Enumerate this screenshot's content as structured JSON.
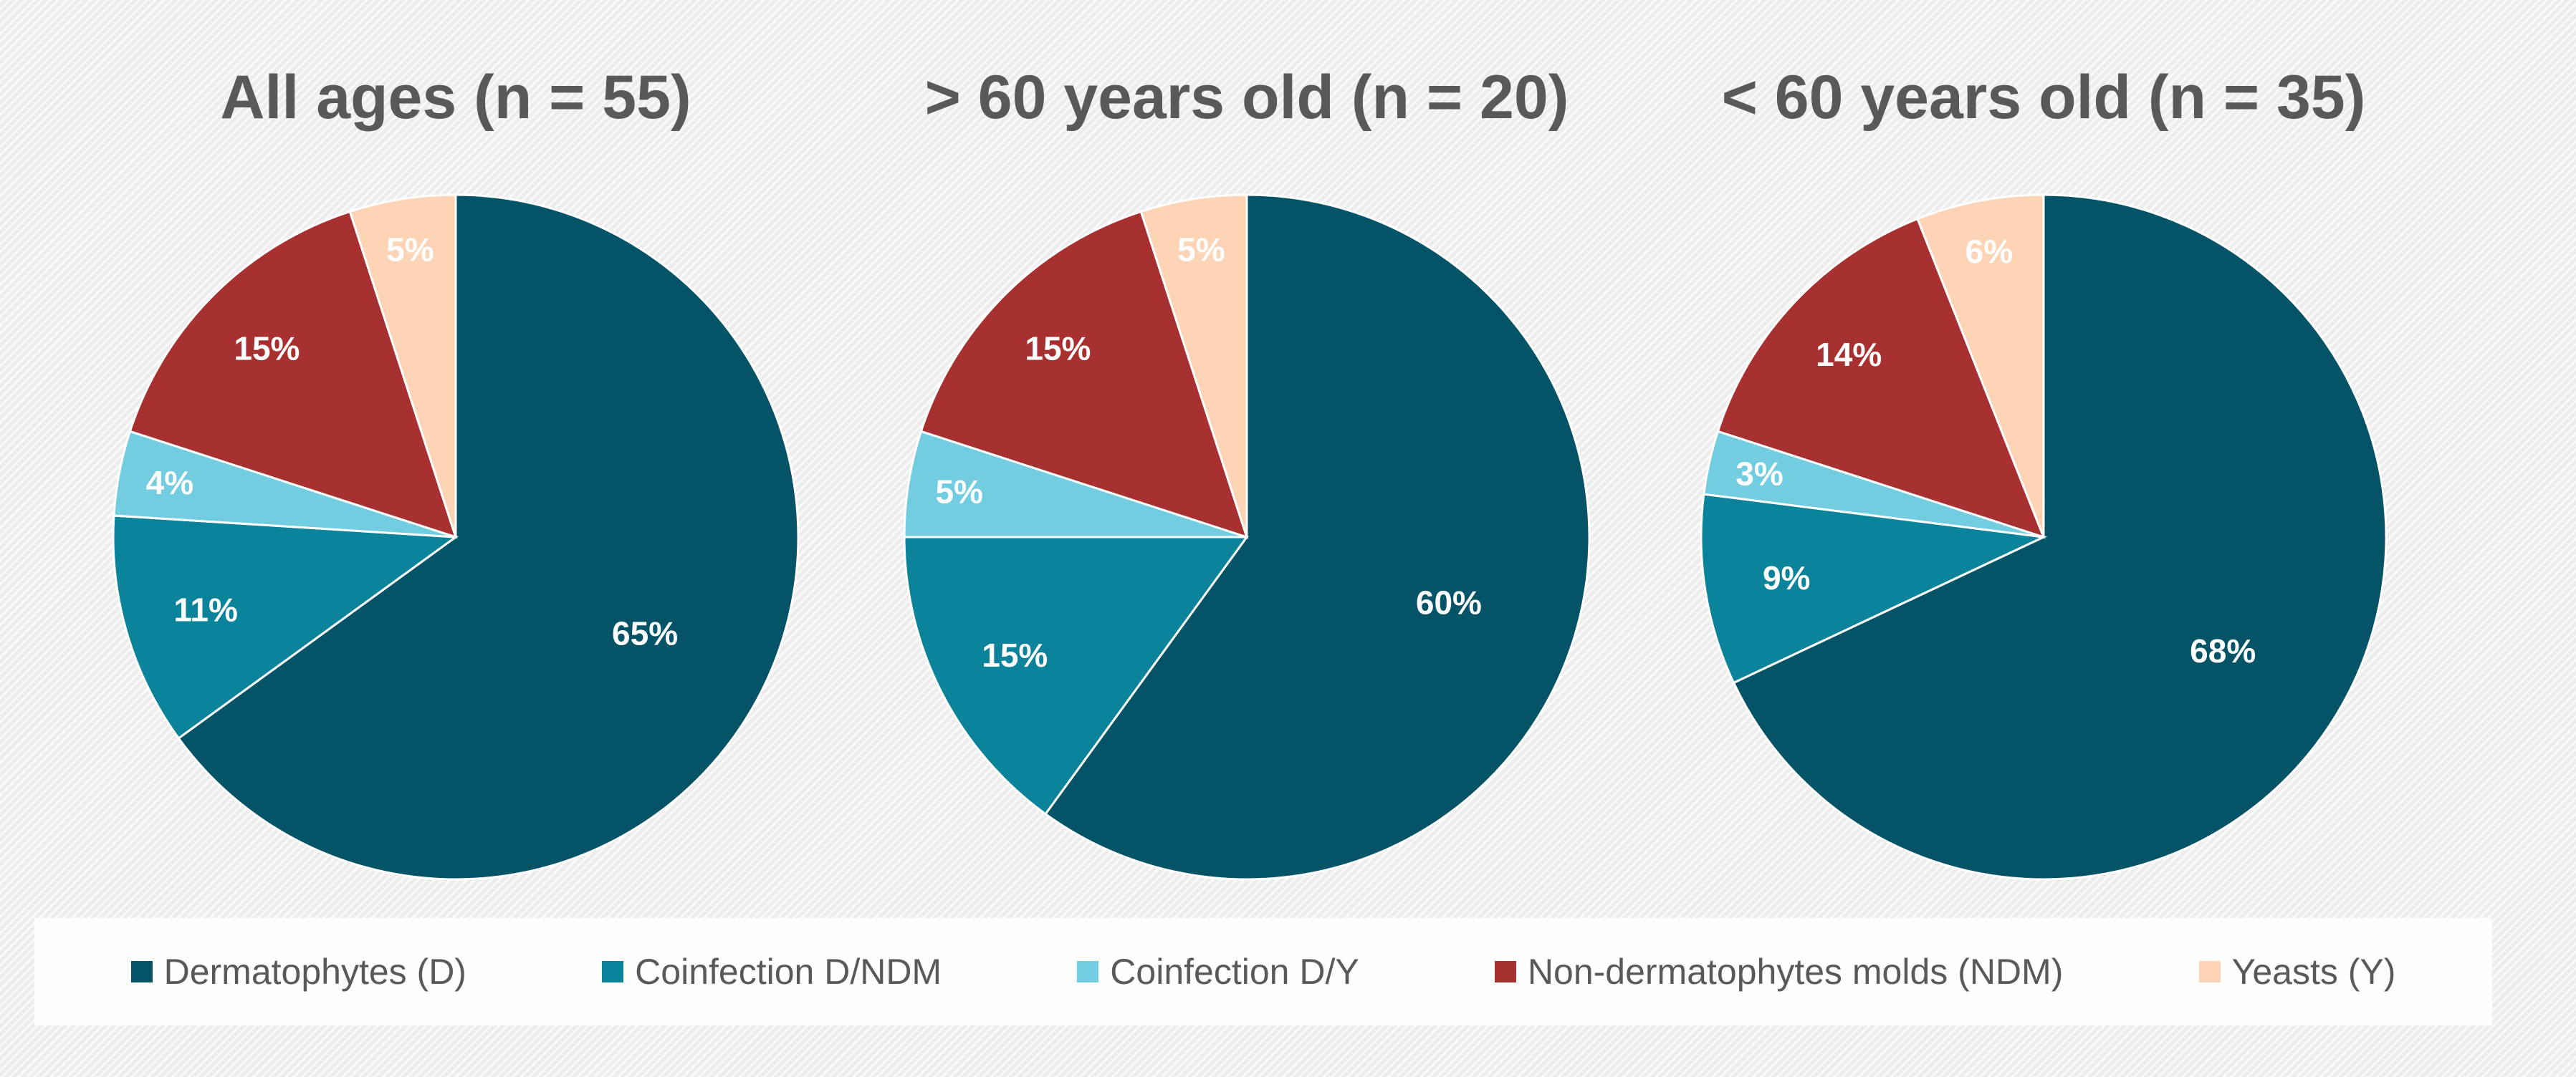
{
  "colors": {
    "Dermatophytes (D)": "#045367",
    "Coinfection D/NDM": "#0b849b",
    "Coinfection D/Y": "#72cde0",
    "Non-dermatophytes molds (NDM)": "#a73131",
    "Yeasts (Y)": "#fdd4b5"
  },
  "legend": {
    "items": [
      "Dermatophytes (D)",
      "Coinfection D/NDM",
      "Coinfection D/Y",
      "Non-dermatophytes molds (NDM)",
      "Yeasts (Y)"
    ]
  },
  "chart_data": [
    {
      "type": "pie",
      "title": "All ages (n = 55)",
      "categories": [
        "Dermatophytes (D)",
        "Coinfection D/NDM",
        "Coinfection D/Y",
        "Non-dermatophytes molds (NDM)",
        "Yeasts (Y)"
      ],
      "values": [
        65,
        11,
        4,
        15,
        5
      ],
      "labels": [
        "65%",
        "11%",
        "4%",
        "15%",
        "5%"
      ]
    },
    {
      "type": "pie",
      "title": "> 60 years old (n = 20)",
      "categories": [
        "Dermatophytes (D)",
        "Coinfection D/NDM",
        "Coinfection D/Y",
        "Non-dermatophytes molds (NDM)",
        "Yeasts (Y)"
      ],
      "values": [
        60,
        15,
        5,
        15,
        5
      ],
      "labels": [
        "60%",
        "15%",
        "5%",
        "15%",
        "5%"
      ]
    },
    {
      "type": "pie",
      "title": "< 60 years old (n = 35)",
      "categories": [
        "Dermatophytes (D)",
        "Coinfection D/NDM",
        "Coinfection D/Y",
        "Non-dermatophytes molds (NDM)",
        "Yeasts (Y)"
      ],
      "values": [
        68,
        9,
        3,
        14,
        6
      ],
      "labels": [
        "68%",
        "9%",
        "3%",
        "14%",
        "6%"
      ]
    }
  ]
}
